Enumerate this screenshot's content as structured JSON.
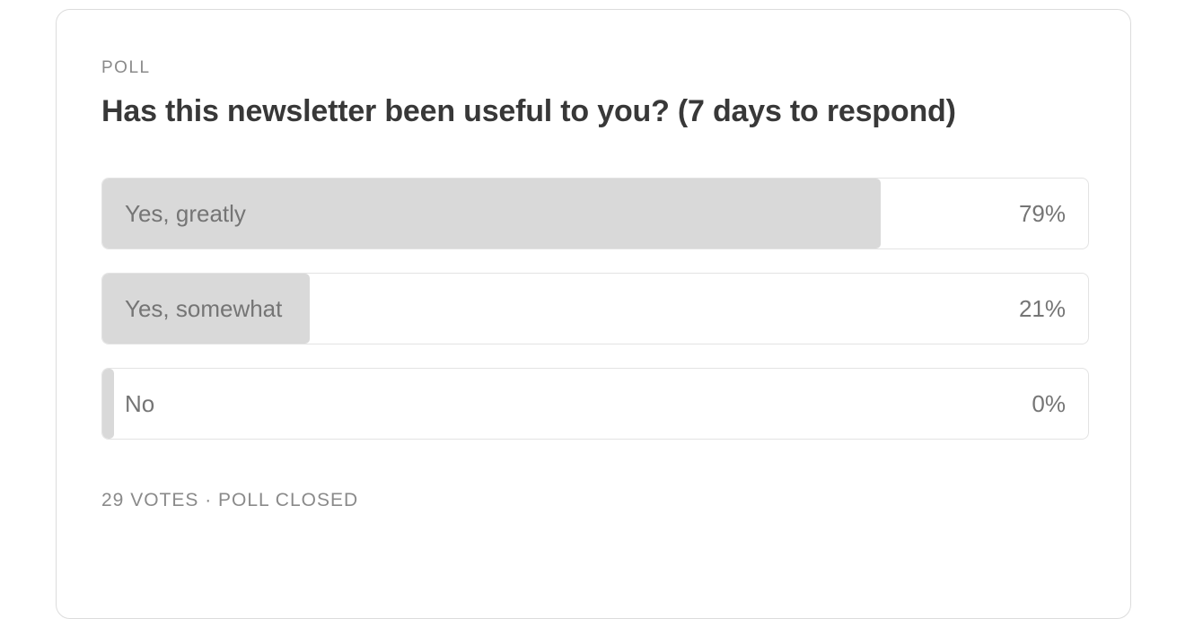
{
  "poll": {
    "kicker": "POLL",
    "question": "Has this newsletter been useful to you? (7 days to respond)",
    "options": [
      {
        "label": "Yes, greatly",
        "percent_label": "79%",
        "percent": 79
      },
      {
        "label": "Yes, somewhat",
        "percent_label": "21%",
        "percent": 21
      },
      {
        "label": "No",
        "percent_label": "0%",
        "percent": 0
      }
    ],
    "footer": "29 VOTES · POLL CLOSED",
    "colors": {
      "bar_fill": "#d9d9d9",
      "card_border": "#dcdcdc",
      "row_border": "#e3e3e3",
      "option_text": "#757575",
      "question_text": "#383838",
      "muted_text": "#8a8a8a"
    }
  }
}
